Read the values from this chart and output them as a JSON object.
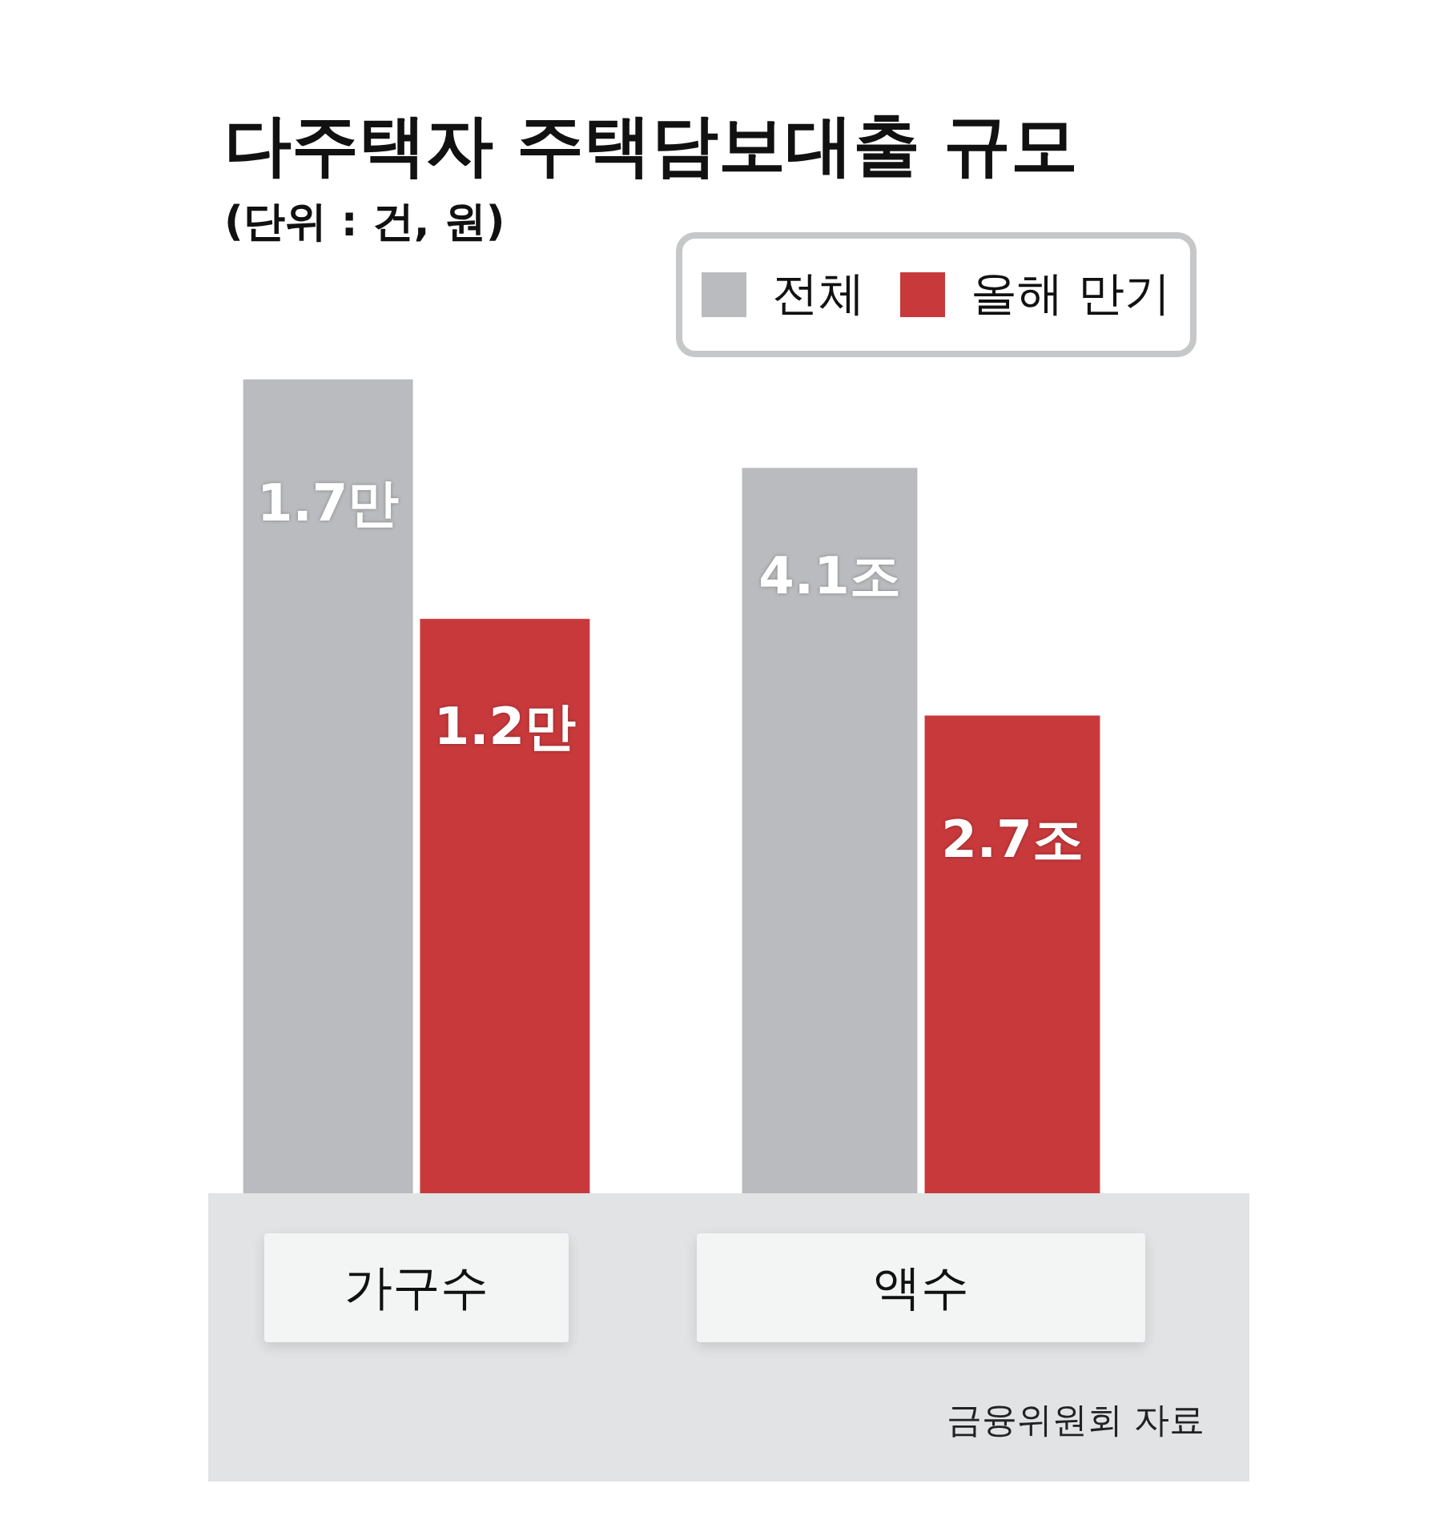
{
  "chart_data": [
    {
      "type": "bar",
      "title": "다주택자 주택담보대출 규모",
      "subtitle": "(단위 : 건, 원)",
      "categories": [
        "가구수"
      ],
      "series": [
        {
          "color": "#b9bbbe",
          "values": [
            1.7
          ],
          "value_labels": [
            "1.7만"
          ]
        },
        {
          "color": "#c8393c",
          "values": [
            1.2
          ],
          "value_labels": [
            "1.2만"
          ]
        }
      ],
      "tick_labels": "x"
    },
    {
      "type": "bar",
      "categories": [
        "액수"
      ],
      "series": [
        {
          "name": "전체",
          "color": "#b9bbbe",
          "values": [
            4.1
          ],
          "value_labels": [
            "4.1조"
          ]
        },
        {
          "name": "올해 만기",
          "color": "#c8393c",
          "values": [
            2.7
          ],
          "value_labels": [
            "2.7조"
          ]
        }
      ],
      "tick_labels": "x",
      "legend": "top",
      "annotations": [
        "금융위원회 자료"
      ]
    }
  ]
}
